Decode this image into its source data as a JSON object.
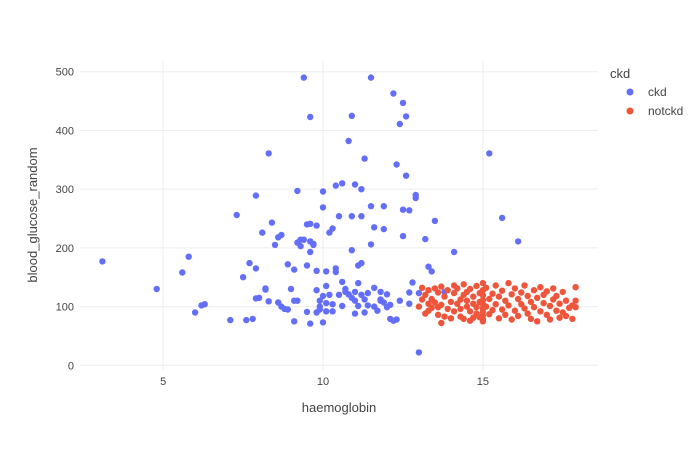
{
  "chart_data": {
    "type": "scatter",
    "xlabel": "haemoglobin",
    "ylabel": "blood_glucose_random",
    "xlim": [
      2.4,
      18.6
    ],
    "ylim": [
      -8,
      520
    ],
    "x_ticks": [
      5,
      10,
      15
    ],
    "y_ticks": [
      0,
      100,
      200,
      300,
      400,
      500
    ],
    "grid": true,
    "legend": {
      "title": "ckd",
      "placement": "right"
    },
    "series": [
      {
        "name": "ckd",
        "color": "#636efa",
        "points": [
          [
            3.1,
            177
          ],
          [
            4.8,
            130
          ],
          [
            5.6,
            158
          ],
          [
            5.8,
            185
          ],
          [
            6.0,
            90
          ],
          [
            6.2,
            102
          ],
          [
            6.3,
            104
          ],
          [
            7.1,
            77
          ],
          [
            7.3,
            256
          ],
          [
            7.5,
            150
          ],
          [
            7.6,
            77
          ],
          [
            7.7,
            174
          ],
          [
            7.8,
            79
          ],
          [
            7.9,
            165
          ],
          [
            7.9,
            114
          ],
          [
            7.9,
            289
          ],
          [
            8.0,
            115
          ],
          [
            8.1,
            226
          ],
          [
            8.2,
            131
          ],
          [
            8.2,
            129
          ],
          [
            8.3,
            361
          ],
          [
            8.3,
            109
          ],
          [
            8.4,
            243
          ],
          [
            8.5,
            205
          ],
          [
            8.6,
            218
          ],
          [
            8.7,
            222
          ],
          [
            8.7,
            100
          ],
          [
            8.6,
            107
          ],
          [
            8.8,
            96
          ],
          [
            8.9,
            172
          ],
          [
            8.9,
            95
          ],
          [
            9.1,
            163
          ],
          [
            9.0,
            130
          ],
          [
            9.1,
            110
          ],
          [
            9.1,
            75
          ],
          [
            9.2,
            297
          ],
          [
            9.2,
            209
          ],
          [
            9.2,
            110
          ],
          [
            9.3,
            214
          ],
          [
            9.3,
            203
          ],
          [
            9.4,
            490
          ],
          [
            9.4,
            214
          ],
          [
            9.5,
            170
          ],
          [
            9.5,
            91
          ],
          [
            9.5,
            240
          ],
          [
            9.6,
            193
          ],
          [
            9.6,
            71
          ],
          [
            9.6,
            423
          ],
          [
            9.6,
            241
          ],
          [
            9.6,
            211
          ],
          [
            9.7,
            207
          ],
          [
            9.7,
            205
          ],
          [
            9.8,
            238
          ],
          [
            9.8,
            161
          ],
          [
            9.8,
            90
          ],
          [
            9.8,
            128
          ],
          [
            9.9,
            95
          ],
          [
            9.9,
            110
          ],
          [
            9.9,
            100
          ],
          [
            10.0,
            269
          ],
          [
            10.0,
            296
          ],
          [
            10.0,
            73
          ],
          [
            10.0,
            118
          ],
          [
            10.1,
            135
          ],
          [
            10.1,
            92
          ],
          [
            10.1,
            106
          ],
          [
            10.1,
            160
          ],
          [
            10.2,
            226
          ],
          [
            10.2,
            120
          ],
          [
            10.3,
            233
          ],
          [
            10.3,
            92
          ],
          [
            10.3,
            104
          ],
          [
            10.4,
            165
          ],
          [
            10.4,
            306
          ],
          [
            10.4,
            159
          ],
          [
            10.5,
            254
          ],
          [
            10.5,
            120
          ],
          [
            10.6,
            310
          ],
          [
            10.6,
            101
          ],
          [
            10.6,
            142
          ],
          [
            10.7,
            125
          ],
          [
            10.7,
            130
          ],
          [
            10.8,
            382
          ],
          [
            10.8,
            121
          ],
          [
            10.9,
            425
          ],
          [
            10.9,
            196
          ],
          [
            10.9,
            254
          ],
          [
            10.9,
            115
          ],
          [
            11.0,
            308
          ],
          [
            11.0,
            88
          ],
          [
            11.0,
            110
          ],
          [
            11.0,
            125
          ],
          [
            11.1,
            170
          ],
          [
            11.1,
            140
          ],
          [
            11.1,
            101
          ],
          [
            11.2,
            254
          ],
          [
            11.2,
            300
          ],
          [
            11.2,
            174
          ],
          [
            11.2,
            120
          ],
          [
            11.3,
            352
          ],
          [
            11.3,
            90
          ],
          [
            11.3,
            112
          ],
          [
            11.4,
            102
          ],
          [
            11.4,
            123
          ],
          [
            11.5,
            490
          ],
          [
            11.5,
            271
          ],
          [
            11.5,
            206
          ],
          [
            11.6,
            132
          ],
          [
            11.6,
            100
          ],
          [
            11.6,
            235
          ],
          [
            11.7,
            93
          ],
          [
            11.8,
            125
          ],
          [
            11.8,
            112
          ],
          [
            11.8,
            110
          ],
          [
            11.9,
            271
          ],
          [
            11.9,
            232
          ],
          [
            11.9,
            107
          ],
          [
            12.0,
            121
          ],
          [
            12.0,
            99
          ],
          [
            12.1,
            103
          ],
          [
            12.1,
            79
          ],
          [
            12.2,
            76
          ],
          [
            12.2,
            463
          ],
          [
            12.3,
            342
          ],
          [
            12.3,
            78
          ],
          [
            12.4,
            411
          ],
          [
            12.4,
            110
          ],
          [
            12.5,
            447
          ],
          [
            12.5,
            265
          ],
          [
            12.5,
            220
          ],
          [
            12.6,
            424
          ],
          [
            12.6,
            323
          ],
          [
            12.7,
            105
          ],
          [
            12.7,
            124
          ],
          [
            12.7,
            264
          ],
          [
            12.8,
            141
          ],
          [
            12.9,
            290
          ],
          [
            12.9,
            285
          ],
          [
            13.0,
            123
          ],
          [
            13.0,
            22
          ],
          [
            13.2,
            215
          ],
          [
            13.3,
            168
          ],
          [
            13.4,
            160
          ],
          [
            13.5,
            246
          ],
          [
            13.8,
            125
          ],
          [
            14.1,
            193
          ],
          [
            15.2,
            361
          ],
          [
            15.6,
            251
          ],
          [
            16.1,
            211
          ]
        ]
      },
      {
        "name": "notckd",
        "color": "#ef553b",
        "points": [
          [
            13.0,
            100
          ],
          [
            13.1,
            112
          ],
          [
            13.1,
            132
          ],
          [
            13.2,
            88
          ],
          [
            13.2,
            120
          ],
          [
            13.3,
            93
          ],
          [
            13.3,
            105
          ],
          [
            13.3,
            128
          ],
          [
            13.4,
            98
          ],
          [
            13.4,
            113
          ],
          [
            13.5,
            107
          ],
          [
            13.5,
            131
          ],
          [
            13.6,
            86
          ],
          [
            13.6,
            99
          ],
          [
            13.6,
            124
          ],
          [
            13.7,
            72
          ],
          [
            13.7,
            103
          ],
          [
            13.7,
            134
          ],
          [
            13.8,
            83
          ],
          [
            13.8,
            117
          ],
          [
            13.9,
            96
          ],
          [
            13.9,
            128
          ],
          [
            14.0,
            108
          ],
          [
            14.0,
            80
          ],
          [
            14.1,
            136
          ],
          [
            14.1,
            123
          ],
          [
            14.1,
            92
          ],
          [
            14.2,
            105
          ],
          [
            14.2,
            131
          ],
          [
            14.3,
            112
          ],
          [
            14.3,
            96
          ],
          [
            14.3,
            83
          ],
          [
            14.4,
            120
          ],
          [
            14.4,
            138
          ],
          [
            14.4,
            79
          ],
          [
            14.5,
            100
          ],
          [
            14.5,
            125
          ],
          [
            14.5,
            110
          ],
          [
            14.6,
            76
          ],
          [
            14.6,
            92
          ],
          [
            14.6,
            130
          ],
          [
            14.7,
            105
          ],
          [
            14.7,
            117
          ],
          [
            14.7,
            81
          ],
          [
            14.8,
            135
          ],
          [
            14.8,
            99
          ],
          [
            14.8,
            88
          ],
          [
            14.9,
            123
          ],
          [
            14.9,
            108
          ],
          [
            14.9,
            82
          ],
          [
            15.0,
            140
          ],
          [
            15.0,
            128
          ],
          [
            15.0,
            119
          ],
          [
            15.0,
            111
          ],
          [
            15.0,
            104
          ],
          [
            15.0,
            97
          ],
          [
            15.0,
            91
          ],
          [
            15.0,
            85
          ],
          [
            15.0,
            79
          ],
          [
            15.0,
            75
          ],
          [
            15.1,
            132
          ],
          [
            15.1,
            100
          ],
          [
            15.2,
            113
          ],
          [
            15.2,
            87
          ],
          [
            15.3,
            122
          ],
          [
            15.3,
            94
          ],
          [
            15.4,
            136
          ],
          [
            15.4,
            104
          ],
          [
            15.5,
            80
          ],
          [
            15.5,
            117
          ],
          [
            15.6,
            127
          ],
          [
            15.6,
            95
          ],
          [
            15.7,
            110
          ],
          [
            15.7,
            86
          ],
          [
            15.8,
            140
          ],
          [
            15.8,
            102
          ],
          [
            15.9,
            121
          ],
          [
            15.9,
            78
          ],
          [
            16.0,
            131
          ],
          [
            16.0,
            93
          ],
          [
            16.1,
            113
          ],
          [
            16.1,
            84
          ],
          [
            16.2,
            104
          ],
          [
            16.2,
            124
          ],
          [
            16.3,
            97
          ],
          [
            16.3,
            136
          ],
          [
            16.4,
            88
          ],
          [
            16.4,
            118
          ],
          [
            16.5,
            108
          ],
          [
            16.5,
            79
          ],
          [
            16.6,
            128
          ],
          [
            16.6,
            99
          ],
          [
            16.7,
            115
          ],
          [
            16.7,
            75
          ],
          [
            16.8,
            133
          ],
          [
            16.8,
            92
          ],
          [
            16.9,
            106
          ],
          [
            16.9,
            120
          ],
          [
            17.0,
            86
          ],
          [
            17.0,
            126
          ],
          [
            17.1,
            101
          ],
          [
            17.1,
            78
          ],
          [
            17.2,
            112
          ],
          [
            17.2,
            131
          ],
          [
            17.3,
            93
          ],
          [
            17.3,
            118
          ],
          [
            17.4,
            81
          ],
          [
            17.4,
            105
          ],
          [
            17.5,
            125
          ],
          [
            17.5,
            90
          ],
          [
            17.6,
            110
          ],
          [
            17.6,
            84
          ],
          [
            17.7,
            98
          ],
          [
            17.8,
            79
          ],
          [
            17.8,
            102
          ],
          [
            17.9,
            133
          ],
          [
            17.9,
            110
          ],
          [
            17.9,
            99
          ]
        ]
      }
    ]
  }
}
